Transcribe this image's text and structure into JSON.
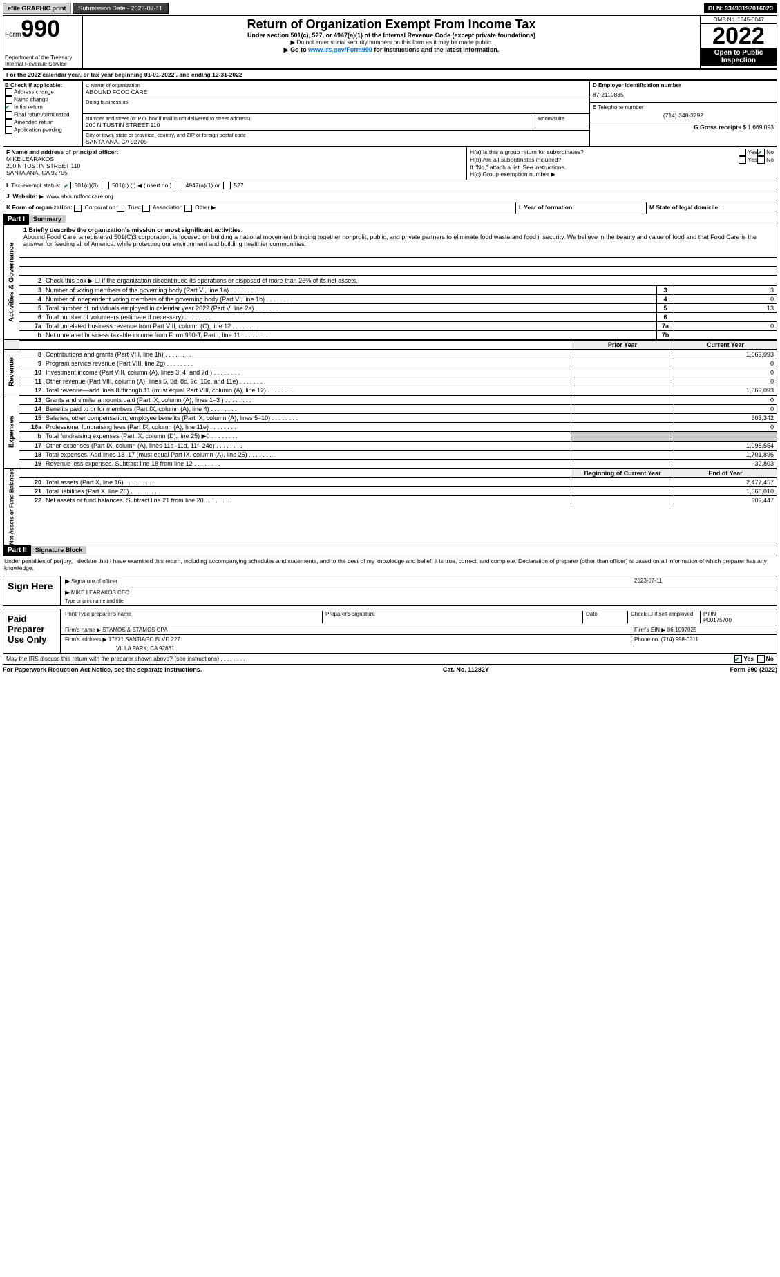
{
  "top": {
    "efile": "efile GRAPHIC print",
    "sub_btn": "Submission Date - 2023-07-11",
    "dln": "DLN: 93493192016023"
  },
  "hdr": {
    "form_word": "Form",
    "form_no": "990",
    "dept1": "Department of the Treasury",
    "dept2": "Internal Revenue Service",
    "title": "Return of Organization Exempt From Income Tax",
    "sub1": "Under section 501(c), 527, or 4947(a)(1) of the Internal Revenue Code (except private foundations)",
    "sub2": "▶ Do not enter social security numbers on this form as it may be made public.",
    "sub3_pre": "▶ Go to ",
    "sub3_link": "www.irs.gov/Form990",
    "sub3_post": " for instructions and the latest information.",
    "omb": "OMB No. 1545-0047",
    "year": "2022",
    "open": "Open to Public Inspection"
  },
  "A": "For the 2022 calendar year, or tax year beginning 01-01-2022    , and ending 12-31-2022",
  "B": {
    "label": "B Check if applicable:",
    "opts": [
      "Address change",
      "Name change",
      "Initial return",
      "Final return/terminated",
      "Amended return",
      "Application pending"
    ],
    "checked_idx": 2
  },
  "C": {
    "name_lbl": "C Name of organization",
    "name": "ABOUND FOOD CARE",
    "dba_lbl": "Doing business as",
    "addr_lbl": "Number and street (or P.O. box if mail is not delivered to street address)",
    "room_lbl": "Room/suite",
    "addr": "200 N TUSTIN STREET 110",
    "city_lbl": "City or town, state or province, country, and ZIP or foreign postal code",
    "city": "SANTA ANA, CA  92705"
  },
  "D": {
    "lbl": "D Employer identification number",
    "val": "87-2110835"
  },
  "E": {
    "lbl": "E Telephone number",
    "val": "(714) 348-3292"
  },
  "G": {
    "lbl": "G Gross receipts $",
    "val": "1,669,093"
  },
  "F": {
    "lbl": "F  Name and address of principal officer:",
    "l1": "MIKE LEARAKOS",
    "l2": "200 N TUSTIN STREET 110",
    "l3": "SANTA ANA, CA  92705"
  },
  "H": {
    "a": "H(a)  Is this a group return for subordinates?",
    "b": "H(b)  Are all subordinates included?",
    "b2": "If \"No,\" attach a list. See instructions.",
    "c": "H(c)  Group exemption number ▶",
    "yes": "Yes",
    "no": "No"
  },
  "I": {
    "lbl": "Tax-exempt status:",
    "o1": "501(c)(3)",
    "o2": "501(c) (  ) ◀ (insert no.)",
    "o3": "4947(a)(1) or",
    "o4": "527"
  },
  "J": {
    "lbl": "Website: ▶",
    "val": "www.aboundfoodcare.org"
  },
  "K": {
    "lbl": "K Form of organization:",
    "opts": [
      "Corporation",
      "Trust",
      "Association",
      "Other ▶"
    ]
  },
  "L": "L Year of formation:",
  "M": "M State of legal domicile:",
  "part1": {
    "bar": "Part I",
    "title": "Summary"
  },
  "mission_lbl": "1  Briefly describe the organization's mission or most significant activities:",
  "mission": "Abound Food Care, a registered 501(C)3 corporation, is focused on building a national movement bringing together nonprofit, public, and private partners to eliminate food waste and food insecurity. We believe in the beauty and value of food and that Food Care is the answer for feeding all of America, while protecting our environment and building healthier communities.",
  "line2": "Check this box ▶ ☐ if the organization discontinued its operations or disposed of more than 25% of its net assets.",
  "gov": {
    "side": "Activities & Governance",
    "rows": [
      {
        "n": "3",
        "t": "Number of voting members of the governing body (Part VI, line 1a)",
        "b": "3",
        "v": "3"
      },
      {
        "n": "4",
        "t": "Number of independent voting members of the governing body (Part VI, line 1b)",
        "b": "4",
        "v": "0"
      },
      {
        "n": "5",
        "t": "Total number of individuals employed in calendar year 2022 (Part V, line 2a)",
        "b": "5",
        "v": "13"
      },
      {
        "n": "6",
        "t": "Total number of volunteers (estimate if necessary)",
        "b": "6",
        "v": ""
      },
      {
        "n": "7a",
        "t": "Total unrelated business revenue from Part VIII, column (C), line 12",
        "b": "7a",
        "v": "0"
      },
      {
        "n": "b",
        "t": "Net unrelated business taxable income from Form 990-T, Part I, line 11",
        "b": "7b",
        "v": ""
      }
    ]
  },
  "cols": {
    "py": "Prior Year",
    "cy": "Current Year",
    "boy": "Beginning of Current Year",
    "eoy": "End of Year"
  },
  "rev": {
    "side": "Revenue",
    "rows": [
      {
        "n": "8",
        "t": "Contributions and grants (Part VIII, line 1h)",
        "py": "",
        "cy": "1,669,093"
      },
      {
        "n": "9",
        "t": "Program service revenue (Part VIII, line 2g)",
        "py": "",
        "cy": "0"
      },
      {
        "n": "10",
        "t": "Investment income (Part VIII, column (A), lines 3, 4, and 7d )",
        "py": "",
        "cy": "0"
      },
      {
        "n": "11",
        "t": "Other revenue (Part VIII, column (A), lines 5, 6d, 8c, 9c, 10c, and 11e)",
        "py": "",
        "cy": "0"
      },
      {
        "n": "12",
        "t": "Total revenue—add lines 8 through 11 (must equal Part VIII, column (A), line 12)",
        "py": "",
        "cy": "1,669,093"
      }
    ]
  },
  "exp": {
    "side": "Expenses",
    "rows": [
      {
        "n": "13",
        "t": "Grants and similar amounts paid (Part IX, column (A), lines 1–3 )",
        "py": "",
        "cy": "0"
      },
      {
        "n": "14",
        "t": "Benefits paid to or for members (Part IX, column (A), line 4)",
        "py": "",
        "cy": "0"
      },
      {
        "n": "15",
        "t": "Salaries, other compensation, employee benefits (Part IX, column (A), lines 5–10)",
        "py": "",
        "cy": "603,342"
      },
      {
        "n": "16a",
        "t": "Professional fundraising fees (Part IX, column (A), line 11e)",
        "py": "",
        "cy": "0"
      },
      {
        "n": "b",
        "t": "Total fundraising expenses (Part IX, column (D), line 25) ▶0",
        "py": "—",
        "cy": "—"
      },
      {
        "n": "17",
        "t": "Other expenses (Part IX, column (A), lines 11a–11d, 11f–24e)",
        "py": "",
        "cy": "1,098,554"
      },
      {
        "n": "18",
        "t": "Total expenses. Add lines 13–17 (must equal Part IX, column (A), line 25)",
        "py": "",
        "cy": "1,701,896"
      },
      {
        "n": "19",
        "t": "Revenue less expenses. Subtract line 18 from line 12",
        "py": "",
        "cy": "-32,803"
      }
    ]
  },
  "net": {
    "side": "Net Assets or Fund Balances",
    "rows": [
      {
        "n": "20",
        "t": "Total assets (Part X, line 16)",
        "py": "",
        "cy": "2,477,457"
      },
      {
        "n": "21",
        "t": "Total liabilities (Part X, line 26)",
        "py": "",
        "cy": "1,568,010"
      },
      {
        "n": "22",
        "t": "Net assets or fund balances. Subtract line 21 from line 20",
        "py": "",
        "cy": "909,447"
      }
    ]
  },
  "part2": {
    "bar": "Part II",
    "title": "Signature Block"
  },
  "penalty": "Under penalties of perjury, I declare that I have examined this return, including accompanying schedules and statements, and to the best of my knowledge and belief, it is true, correct, and complete. Declaration of preparer (other than officer) is based on all information of which preparer has any knowledge.",
  "sign": {
    "left": "Sign Here",
    "sig_lbl": "Signature of officer",
    "date_lbl": "Date",
    "date": "2023-07-11",
    "name": "MIKE LEARAKOS CEO",
    "name_lbl": "Type or print name and title"
  },
  "prep": {
    "left": "Paid Preparer Use Only",
    "h1": "Print/Type preparer's name",
    "h2": "Preparer's signature",
    "h3": "Date",
    "h4": "Check ☐ if self-employed",
    "h5_lbl": "PTIN",
    "h5": "P00175700",
    "firm_lbl": "Firm's name ▶",
    "firm": "STAMOS & STAMOS CPA",
    "ein_lbl": "Firm's EIN ▶",
    "ein": "86-1097025",
    "addr_lbl": "Firm's address ▶",
    "addr1": "17871 SANTIAGO BLVD 227",
    "addr2": "VILLA PARK, CA  92861",
    "phone_lbl": "Phone no.",
    "phone": "(714) 998-0311"
  },
  "discuss": "May the IRS discuss this return with the preparer shown above? (see instructions)",
  "footer": {
    "l": "For Paperwork Reduction Act Notice, see the separate instructions.",
    "m": "Cat. No. 11282Y",
    "r": "Form 990 (2022)"
  }
}
